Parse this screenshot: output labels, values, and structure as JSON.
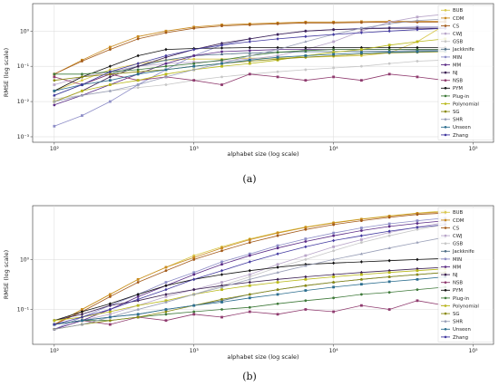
{
  "colors": {
    "BUB": "#d8c84a",
    "CDM": "#c98a1e",
    "CS": "#a35a1a",
    "CWJ": "#b9a6c9",
    "GSB": "#c7c7c7",
    "Jackknife": "#4f6e86",
    "MIN": "#8d8dc7",
    "MM": "#5a2a85",
    "NJ": "#3b1f52",
    "NSB": "#8f3a6e",
    "PYM": "#111111",
    "Plug-in": "#3f7a3a",
    "Polynomial": "#b9b91a",
    "SG": "#8a8a10",
    "SHR": "#9aa0b8",
    "Unseen": "#2c6e8f",
    "Zhang": "#433aa0"
  },
  "chart_data": [
    {
      "type": "line",
      "caption": "(a)",
      "xlabel": "alphabet size (log scale)",
      "ylabel": "RMSE (log scale)",
      "xscale": "log",
      "yscale": "log",
      "xlim": [
        70,
        140000
      ],
      "ylim": [
        0.0007,
        6
      ],
      "xticks": [
        100,
        1000,
        10000,
        100000
      ],
      "xtick_labels": [
        "10²",
        "10³",
        "10⁴",
        "10⁵"
      ],
      "yticks": [
        0.001,
        0.01,
        0.1,
        1
      ],
      "ytick_labels": [
        "10⁻³",
        "10⁻²",
        "10⁻¹",
        "10⁰"
      ],
      "grid": true,
      "legend": "right",
      "x": [
        100,
        158,
        251,
        398,
        631,
        1000,
        1585,
        2512,
        3981,
        6310,
        10000,
        15849,
        25119,
        39811,
        63096
      ],
      "series": [
        {
          "name": "BUB",
          "values": [
            0.02,
            0.04,
            0.08,
            0.12,
            0.15,
            0.16,
            0.16,
            0.17,
            0.17,
            0.18,
            0.19,
            0.2,
            0.24,
            0.5,
            1.5
          ]
        },
        {
          "name": "CDM",
          "values": [
            0.06,
            0.15,
            0.35,
            0.7,
            1.0,
            1.3,
            1.5,
            1.6,
            1.7,
            1.8,
            1.8,
            1.85,
            1.9,
            1.9,
            1.9
          ]
        },
        {
          "name": "CS",
          "values": [
            0.06,
            0.14,
            0.3,
            0.6,
            0.9,
            1.2,
            1.4,
            1.5,
            1.6,
            1.7,
            1.7,
            1.75,
            1.8,
            1.8,
            1.8
          ]
        },
        {
          "name": "CWJ",
          "values": [
            0.03,
            0.05,
            0.07,
            0.1,
            0.12,
            0.13,
            0.14,
            0.16,
            0.2,
            0.3,
            0.5,
            1.0,
            1.8,
            2.5,
            3.0
          ]
        },
        {
          "name": "GSB",
          "values": [
            0.012,
            0.015,
            0.02,
            0.025,
            0.03,
            0.04,
            0.05,
            0.06,
            0.07,
            0.08,
            0.09,
            0.1,
            0.12,
            0.14,
            0.15
          ]
        },
        {
          "name": "Jackknife",
          "values": [
            0.015,
            0.03,
            0.06,
            0.1,
            0.15,
            0.2,
            0.22,
            0.24,
            0.25,
            0.26,
            0.26,
            0.27,
            0.27,
            0.28,
            0.28
          ]
        },
        {
          "name": "MIN",
          "values": [
            0.002,
            0.004,
            0.01,
            0.03,
            0.08,
            0.2,
            0.4,
            0.6,
            0.8,
            1.0,
            1.1,
            1.2,
            1.25,
            1.3,
            1.3
          ]
        },
        {
          "name": "MM",
          "values": [
            0.008,
            0.015,
            0.03,
            0.06,
            0.12,
            0.2,
            0.26,
            0.28,
            0.3,
            0.3,
            0.3,
            0.3,
            0.3,
            0.3,
            0.3
          ]
        },
        {
          "name": "NJ",
          "values": [
            0.01,
            0.02,
            0.05,
            0.1,
            0.18,
            0.3,
            0.45,
            0.6,
            0.8,
            1.0,
            1.1,
            1.15,
            1.2,
            1.2,
            1.2
          ]
        },
        {
          "name": "NSB",
          "values": [
            0.05,
            0.03,
            0.06,
            0.04,
            0.05,
            0.04,
            0.03,
            0.06,
            0.05,
            0.04,
            0.05,
            0.04,
            0.06,
            0.05,
            0.04
          ]
        },
        {
          "name": "PYM",
          "values": [
            0.02,
            0.05,
            0.1,
            0.2,
            0.3,
            0.32,
            0.33,
            0.34,
            0.34,
            0.34,
            0.34,
            0.34,
            0.34,
            0.34,
            0.34
          ]
        },
        {
          "name": "Plug-in",
          "values": [
            0.06,
            0.06,
            0.07,
            0.08,
            0.1,
            0.12,
            0.15,
            0.2,
            0.25,
            0.28,
            0.3,
            0.3,
            0.3,
            0.3,
            0.3
          ]
        },
        {
          "name": "Polynomial",
          "values": [
            0.01,
            0.02,
            0.03,
            0.04,
            0.06,
            0.08,
            0.1,
            0.12,
            0.15,
            0.2,
            0.25,
            0.3,
            0.4,
            0.5,
            0.6
          ]
        },
        {
          "name": "SG",
          "values": [
            0.04,
            0.05,
            0.06,
            0.07,
            0.08,
            0.1,
            0.12,
            0.14,
            0.16,
            0.18,
            0.2,
            0.22,
            0.24,
            0.25,
            0.26
          ]
        },
        {
          "name": "SHR",
          "values": [
            0.01,
            0.015,
            0.02,
            0.03,
            0.05,
            0.08,
            0.12,
            0.2,
            0.3,
            0.5,
            0.8,
            1.2,
            1.6,
            2.0,
            2.2
          ]
        },
        {
          "name": "Unseen",
          "values": [
            0.02,
            0.03,
            0.04,
            0.06,
            0.08,
            0.1,
            0.12,
            0.15,
            0.18,
            0.2,
            0.22,
            0.24,
            0.25,
            0.26,
            0.27
          ]
        },
        {
          "name": "Zhang",
          "values": [
            0.015,
            0.03,
            0.07,
            0.12,
            0.2,
            0.3,
            0.4,
            0.5,
            0.6,
            0.7,
            0.8,
            0.9,
            1.0,
            1.1,
            1.2
          ]
        }
      ]
    },
    {
      "type": "line",
      "caption": "(b)",
      "xlabel": "alphabet size (log scale)",
      "ylabel": "RMSE (log scale)",
      "xscale": "log",
      "yscale": "log",
      "xlim": [
        70,
        140000
      ],
      "ylim": [
        0.02,
        12
      ],
      "xticks": [
        100,
        1000,
        10000,
        100000
      ],
      "xtick_labels": [
        "10²",
        "10³",
        "10⁴",
        "10⁵"
      ],
      "yticks": [
        0.1,
        1
      ],
      "ytick_labels": [
        "10⁻¹",
        "10⁰"
      ],
      "grid": true,
      "legend": "right",
      "x": [
        100,
        158,
        251,
        398,
        631,
        1000,
        1585,
        2512,
        3981,
        6310,
        10000,
        15849,
        25119,
        39811,
        63096
      ],
      "series": [
        {
          "name": "BUB",
          "values": [
            0.05,
            0.1,
            0.2,
            0.4,
            0.7,
            1.2,
            1.8,
            2.6,
            3.5,
            4.5,
            5.5,
            6.5,
            7.5,
            8.5,
            9.5
          ]
        },
        {
          "name": "CDM",
          "values": [
            0.05,
            0.1,
            0.2,
            0.4,
            0.7,
            1.1,
            1.7,
            2.5,
            3.4,
            4.4,
            5.4,
            6.4,
            7.4,
            8.4,
            9.0
          ]
        },
        {
          "name": "CS",
          "values": [
            0.05,
            0.09,
            0.18,
            0.35,
            0.6,
            1.0,
            1.5,
            2.2,
            3.0,
            4.0,
            5.0,
            6.0,
            7.0,
            8.0,
            8.5
          ]
        },
        {
          "name": "CWJ",
          "values": [
            0.04,
            0.06,
            0.08,
            0.12,
            0.18,
            0.25,
            0.35,
            0.5,
            0.8,
            1.2,
            1.8,
            2.5,
            3.5,
            4.5,
            5.5
          ]
        },
        {
          "name": "GSB",
          "values": [
            0.04,
            0.05,
            0.07,
            0.1,
            0.14,
            0.2,
            0.3,
            0.45,
            0.7,
            1.0,
            1.5,
            2.2,
            3.0,
            4.0,
            5.0
          ]
        },
        {
          "name": "Jackknife",
          "values": [
            0.05,
            0.06,
            0.07,
            0.08,
            0.1,
            0.12,
            0.15,
            0.2,
            0.25,
            0.3,
            0.35,
            0.4,
            0.45,
            0.5,
            0.55
          ]
        },
        {
          "name": "MIN",
          "values": [
            0.04,
            0.07,
            0.12,
            0.2,
            0.35,
            0.55,
            0.9,
            1.3,
            1.9,
            2.6,
            3.4,
            4.3,
            5.2,
            6.0,
            6.8
          ]
        },
        {
          "name": "MM",
          "values": [
            0.04,
            0.06,
            0.1,
            0.18,
            0.3,
            0.5,
            0.8,
            1.2,
            1.7,
            2.3,
            3.0,
            3.8,
            4.6,
            5.3,
            6.0
          ]
        },
        {
          "name": "NJ",
          "values": [
            0.06,
            0.08,
            0.12,
            0.15,
            0.2,
            0.25,
            0.3,
            0.35,
            0.4,
            0.45,
            0.5,
            0.55,
            0.6,
            0.65,
            0.7
          ]
        },
        {
          "name": "NSB",
          "values": [
            0.05,
            0.06,
            0.05,
            0.07,
            0.06,
            0.08,
            0.07,
            0.09,
            0.08,
            0.1,
            0.09,
            0.12,
            0.1,
            0.15,
            0.12
          ]
        },
        {
          "name": "PYM",
          "values": [
            0.06,
            0.09,
            0.13,
            0.2,
            0.3,
            0.4,
            0.5,
            0.6,
            0.7,
            0.8,
            0.85,
            0.9,
            0.95,
            1.0,
            1.05
          ]
        },
        {
          "name": "Plug-in",
          "values": [
            0.05,
            0.06,
            0.06,
            0.07,
            0.08,
            0.09,
            0.1,
            0.11,
            0.13,
            0.15,
            0.17,
            0.2,
            0.22,
            0.25,
            0.28
          ]
        },
        {
          "name": "Polynomial",
          "values": [
            0.06,
            0.07,
            0.09,
            0.12,
            0.15,
            0.2,
            0.25,
            0.3,
            0.35,
            0.4,
            0.45,
            0.5,
            0.55,
            0.6,
            0.65
          ]
        },
        {
          "name": "SG",
          "values": [
            0.04,
            0.05,
            0.06,
            0.07,
            0.09,
            0.12,
            0.16,
            0.2,
            0.25,
            0.3,
            0.35,
            0.4,
            0.45,
            0.5,
            0.55
          ]
        },
        {
          "name": "SHR",
          "values": [
            0.04,
            0.05,
            0.07,
            0.1,
            0.14,
            0.2,
            0.28,
            0.4,
            0.55,
            0.75,
            1.0,
            1.3,
            1.7,
            2.2,
            2.8
          ]
        },
        {
          "name": "Unseen",
          "values": [
            0.05,
            0.06,
            0.07,
            0.08,
            0.1,
            0.12,
            0.14,
            0.17,
            0.2,
            0.24,
            0.28,
            0.32,
            0.36,
            0.4,
            0.45
          ]
        },
        {
          "name": "Zhang",
          "values": [
            0.05,
            0.07,
            0.1,
            0.16,
            0.25,
            0.4,
            0.6,
            0.9,
            1.3,
            1.8,
            2.4,
            3.0,
            3.7,
            4.4,
            5.0
          ]
        }
      ]
    }
  ]
}
